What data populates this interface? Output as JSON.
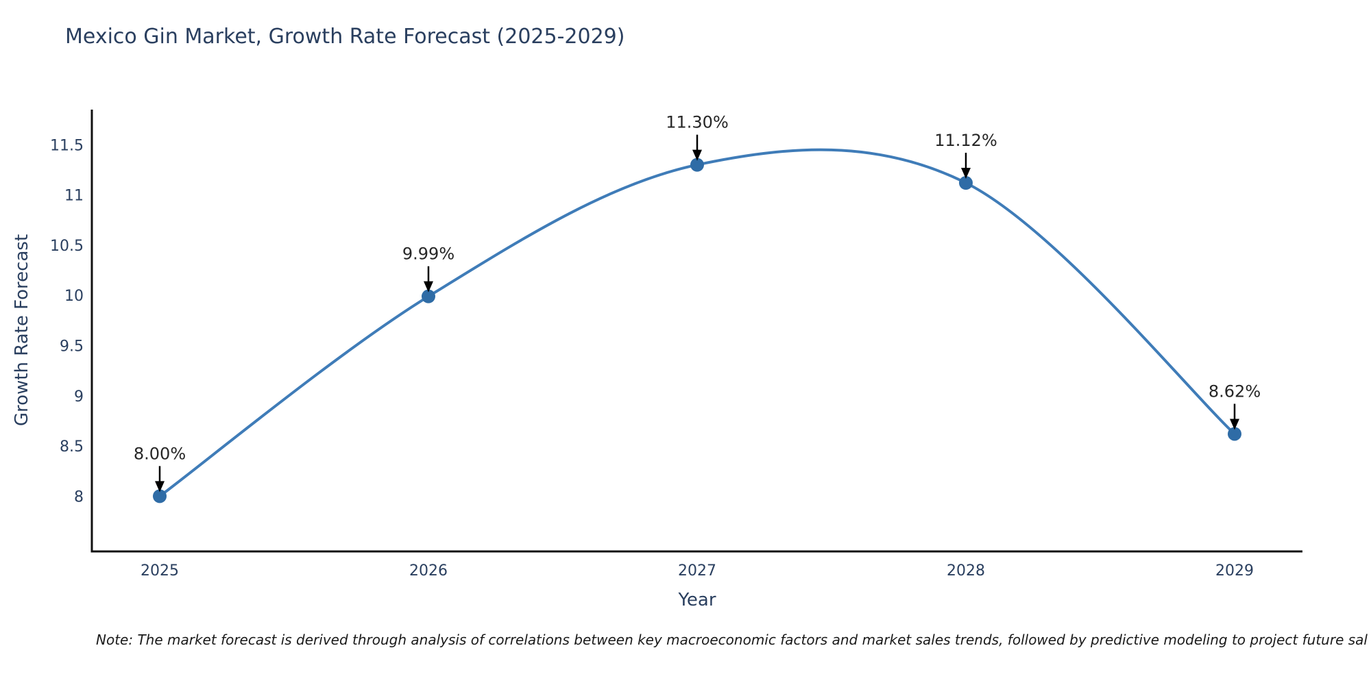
{
  "title": "Mexico Gin Market, Growth Rate Forecast (2025-2029)",
  "note": "Note: The market forecast is derived through analysis of correlations between key macroeconomic factors and market sales trends, followed by predictive modeling to project future sal",
  "chart_data": {
    "type": "line",
    "title": "Mexico Gin Market, Growth Rate Forecast (2025-2029)",
    "xlabel": "Year",
    "ylabel": "Growth Rate Forecast",
    "categories": [
      "2025",
      "2026",
      "2027",
      "2028",
      "2029"
    ],
    "x": [
      2025,
      2026,
      2027,
      2028,
      2029
    ],
    "series": [
      {
        "name": "Growth Rate Forecast",
        "values": [
          8.0,
          9.99,
          11.3,
          11.12,
          8.62
        ]
      }
    ],
    "point_labels": [
      "8.00%",
      "9.99%",
      "11.30%",
      "11.12%",
      "8.62%"
    ],
    "yticks": [
      8,
      8.5,
      9,
      9.5,
      10,
      10.5,
      11,
      11.5
    ],
    "ylim": [
      7.45,
      11.85
    ],
    "line_shape": "spline",
    "grid": false,
    "legend": "none",
    "markers": true,
    "annotation_arrows": true,
    "colors": {
      "line": "#3f7cb8",
      "marker": "#2f6ca6",
      "axis": "#111111",
      "title_text": "#2a3f5f",
      "tick_text": "#2a3f5f",
      "axis_title_text": "#2a3f5f",
      "annotation_text": "#262626",
      "arrow": "#000000",
      "background": "#ffffff"
    }
  }
}
